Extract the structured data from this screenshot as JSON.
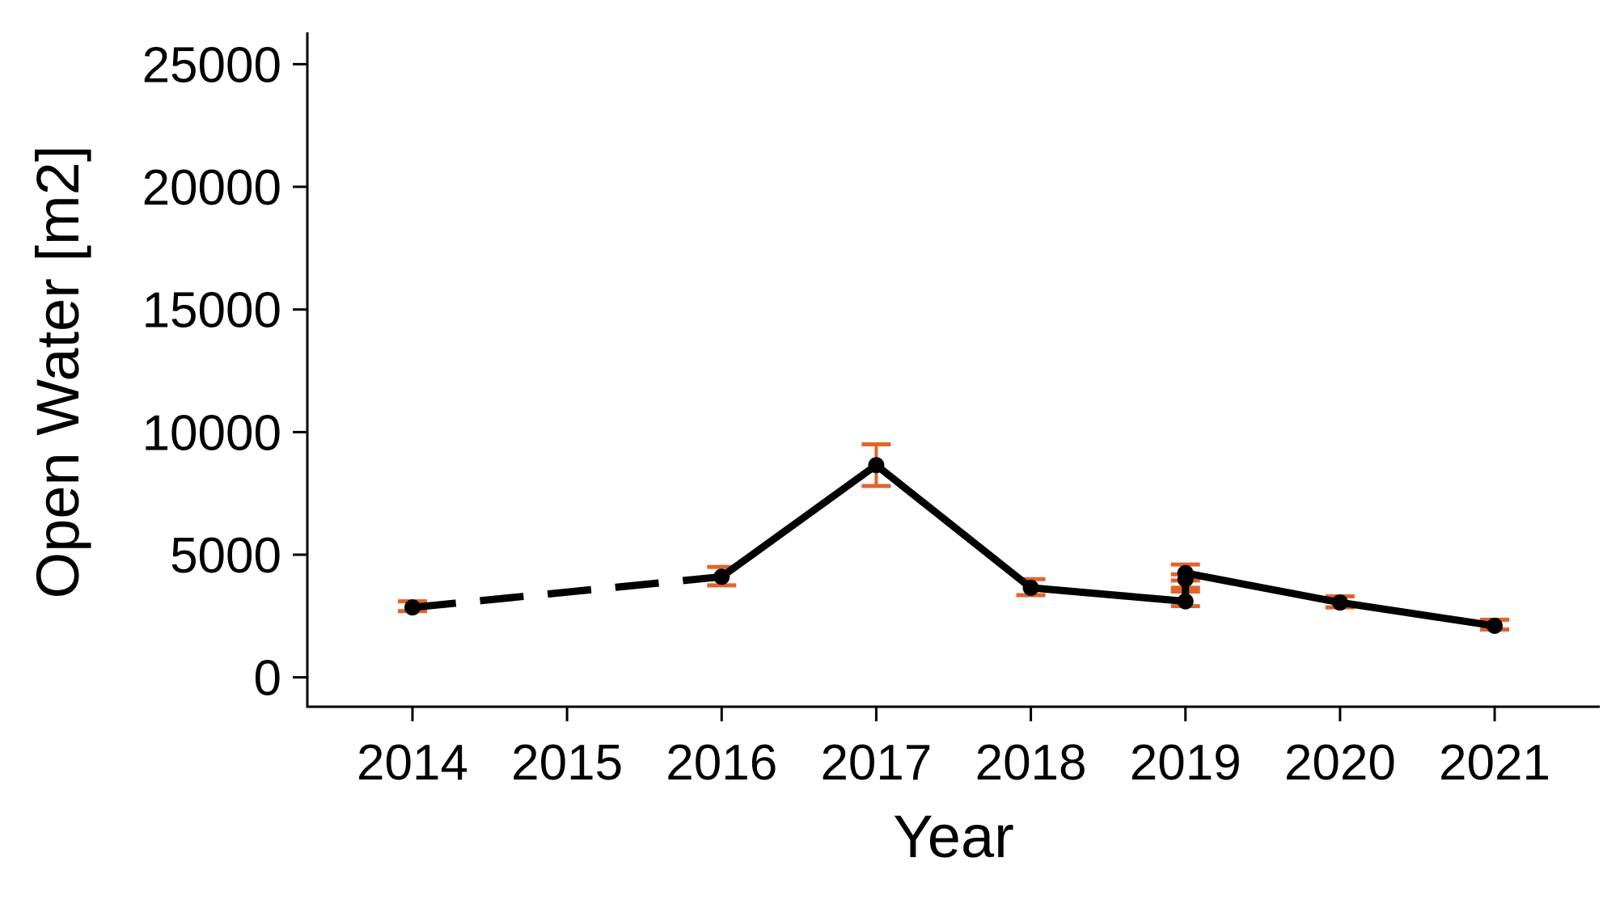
{
  "chart_data": {
    "type": "line",
    "xlabel": "Year",
    "ylabel": "Open Water [m2]",
    "x_ticks": [
      "2014",
      "2015",
      "2016",
      "2017",
      "2018",
      "2019",
      "2020",
      "2021"
    ],
    "y_ticks": [
      "0",
      "5000",
      "10000",
      "15000",
      "20000",
      "25000"
    ],
    "xlim": [
      2013.32,
      2021.68
    ],
    "ylim": [
      -1200,
      26300
    ],
    "grid": false,
    "legend": "none",
    "colors": {
      "line": "#000000",
      "marker": "#000000",
      "errorbar": "#e0652b"
    },
    "points": [
      {
        "x": 2014,
        "y": 2850,
        "err_low": 2700,
        "err_high": 3100
      },
      {
        "x": 2016,
        "y": 4100,
        "err_low": 3750,
        "err_high": 4500
      },
      {
        "x": 2017,
        "y": 8650,
        "err_low": 7800,
        "err_high": 9500
      },
      {
        "x": 2018,
        "y": 3650,
        "err_low": 3350,
        "err_high": 4000
      },
      {
        "x": 2019,
        "y": 3100,
        "err_low": 2900,
        "err_high": 3500
      },
      {
        "x": 2019,
        "y": 4000,
        "err_low": 3650,
        "err_high": 4200
      },
      {
        "x": 2019,
        "y": 4250,
        "err_low": 3950,
        "err_high": 4600
      },
      {
        "x": 2020,
        "y": 3050,
        "err_low": 2850,
        "err_high": 3300
      },
      {
        "x": 2021,
        "y": 2100,
        "err_low": 1950,
        "err_high": 2350
      }
    ],
    "segments": [
      {
        "from": 0,
        "to": 1,
        "style": "dashed"
      },
      {
        "from": 1,
        "to": 2,
        "style": "solid"
      },
      {
        "from": 2,
        "to": 3,
        "style": "solid"
      },
      {
        "from": 3,
        "to": 4,
        "style": "solid"
      },
      {
        "from": 4,
        "to": 6,
        "style": "solid"
      },
      {
        "from": 6,
        "to": 7,
        "style": "solid"
      },
      {
        "from": 7,
        "to": 8,
        "style": "solid"
      }
    ]
  }
}
